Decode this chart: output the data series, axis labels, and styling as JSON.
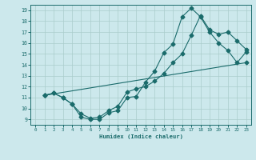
{
  "background_color": "#cce8ec",
  "grid_color": "#aacccc",
  "line_color": "#1a6b6b",
  "xlabel": "Humidex (Indice chaleur)",
  "xlim": [
    -0.5,
    23.5
  ],
  "ylim": [
    8.5,
    19.5
  ],
  "xticks": [
    0,
    1,
    2,
    3,
    4,
    5,
    6,
    7,
    8,
    9,
    10,
    11,
    12,
    13,
    14,
    15,
    16,
    17,
    18,
    19,
    20,
    21,
    22,
    23
  ],
  "yticks": [
    9,
    10,
    11,
    12,
    13,
    14,
    15,
    16,
    17,
    18,
    19
  ],
  "line1_x": [
    1,
    2,
    3,
    4,
    5,
    6,
    7,
    8,
    9,
    10,
    11,
    12,
    13,
    14,
    15,
    16,
    17,
    18,
    19,
    20,
    21,
    22,
    23
  ],
  "line1_y": [
    11.2,
    11.4,
    11.0,
    10.4,
    9.2,
    9.0,
    9.0,
    9.6,
    9.8,
    11.0,
    11.1,
    12.4,
    13.4,
    15.1,
    15.9,
    18.4,
    19.2,
    18.4,
    17.0,
    16.0,
    15.3,
    14.2,
    15.2
  ],
  "line2_x": [
    1,
    2,
    3,
    4,
    5,
    6,
    7,
    8,
    9,
    10,
    11,
    12,
    13,
    14,
    15,
    16,
    17,
    18,
    19,
    20,
    21,
    22,
    23
  ],
  "line2_y": [
    11.2,
    11.4,
    11.0,
    10.4,
    9.5,
    9.1,
    9.2,
    9.8,
    10.2,
    11.5,
    11.8,
    12.0,
    12.5,
    13.2,
    14.2,
    15.0,
    16.7,
    18.5,
    17.2,
    16.8,
    17.0,
    16.2,
    15.4
  ],
  "line3_x": [
    1,
    23
  ],
  "line3_y": [
    11.2,
    14.2
  ],
  "marker1": "D",
  "marker2": "D",
  "markersize": 2.5,
  "linewidth": 0.8
}
